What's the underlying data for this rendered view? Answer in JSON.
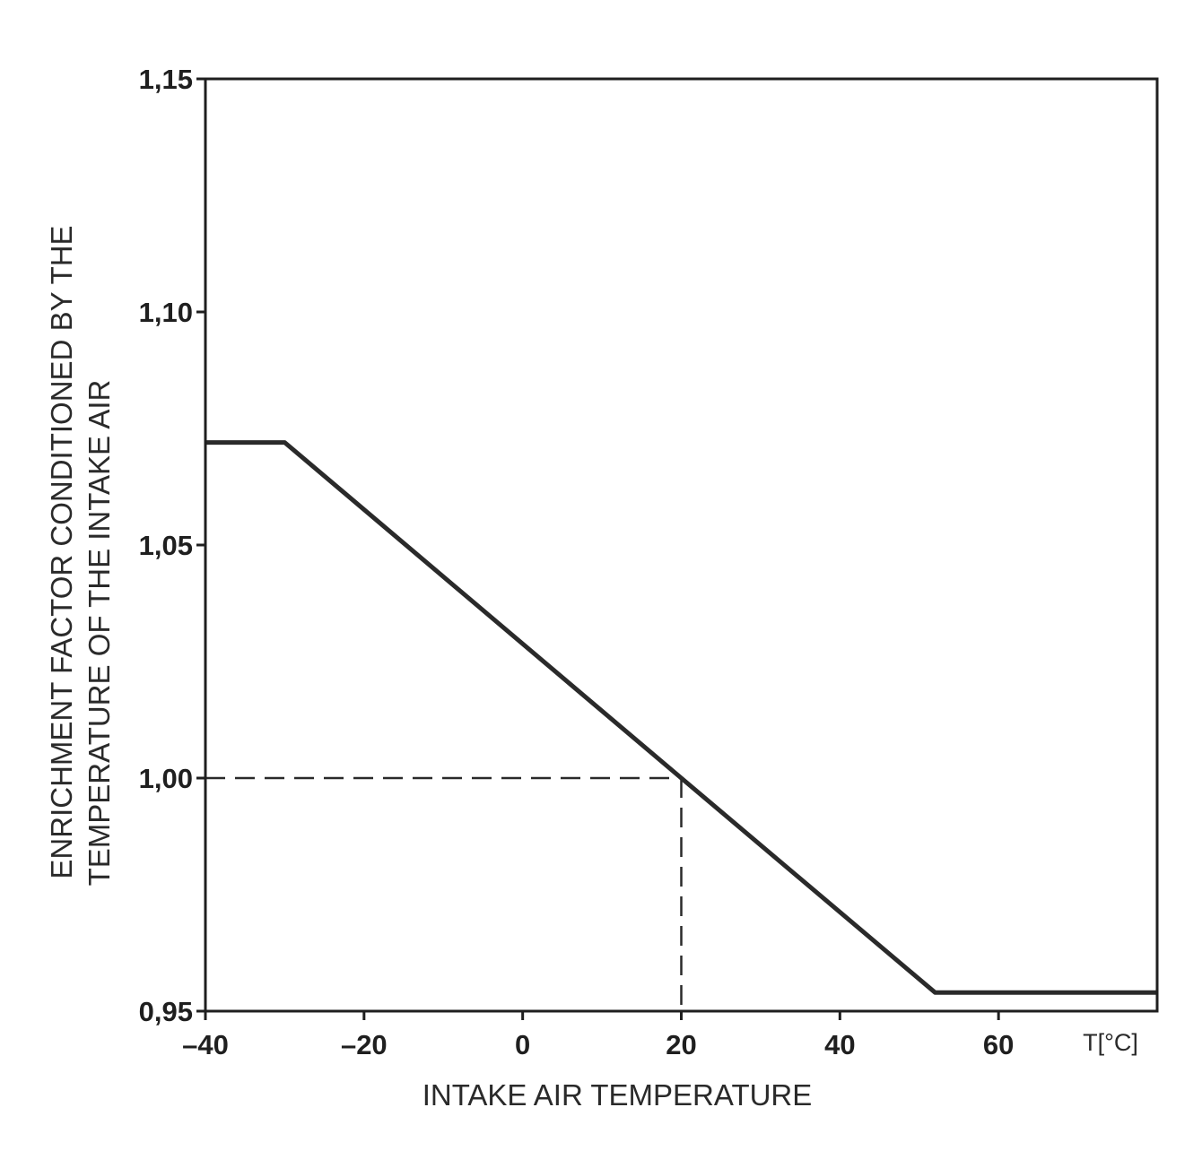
{
  "chart_data": {
    "type": "line",
    "title": "",
    "xlabel": "INTAKE AIR TEMPERATURE",
    "x_unit_label": "T[°C]",
    "ylabel_lines": [
      "ENRICHMENT FACTOR CONDITIONED BY THE",
      "TEMPERATURE OF THE INTAKE AIR"
    ],
    "xlim": [
      -40,
      80
    ],
    "ylim": [
      0.95,
      1.15
    ],
    "x_ticks": [
      -40,
      -20,
      0,
      20,
      40,
      60
    ],
    "x_tick_labels": [
      "–40",
      "–20",
      "0",
      "20",
      "40",
      "60"
    ],
    "y_ticks": [
      0.95,
      1.0,
      1.05,
      1.1,
      1.15
    ],
    "y_tick_labels": [
      "0,95",
      "1,00",
      "1,05",
      "1,10",
      "1,15"
    ],
    "grid": false,
    "series": [
      {
        "x": [
          -40,
          -30,
          20,
          52,
          80
        ],
        "y": [
          1.072,
          1.072,
          1.0,
          0.954,
          0.954
        ],
        "color": "#2a2a2a",
        "style": "solid"
      }
    ],
    "reference_lines": [
      {
        "x": 20,
        "y": 1.0,
        "style": "dashed"
      }
    ]
  }
}
